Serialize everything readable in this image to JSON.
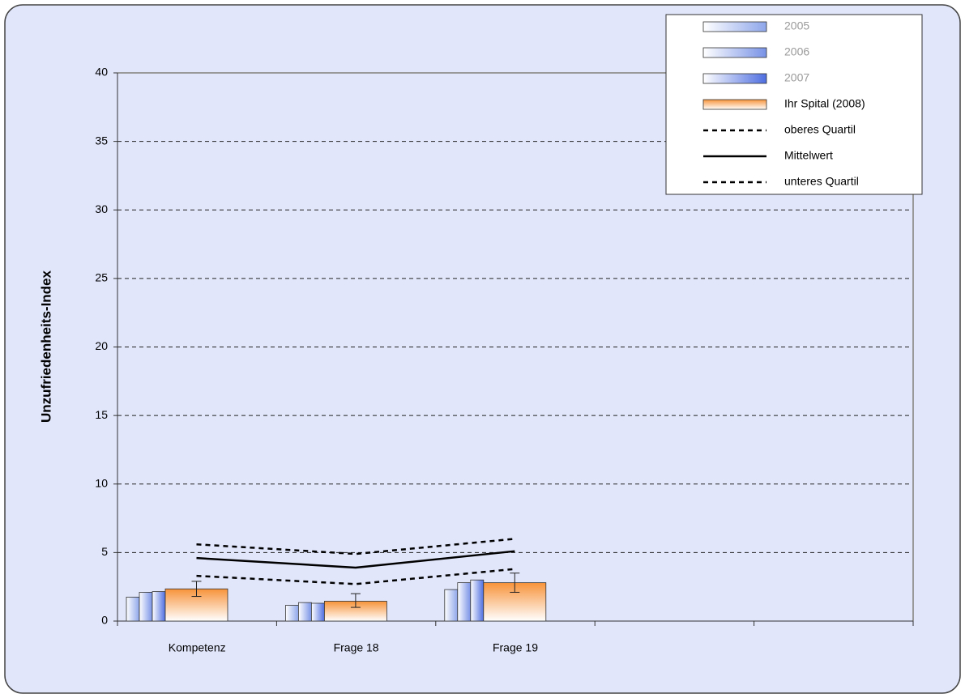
{
  "chart_data": {
    "type": "bar",
    "y_label": "Unzufriedenheits-Index",
    "categories": [
      "Kompetenz",
      "Frage 18",
      "Frage 19",
      null,
      null
    ],
    "ylim": [
      0,
      40
    ],
    "yticks": [
      0,
      5,
      10,
      15,
      20,
      25,
      30,
      35,
      40
    ],
    "grid": true,
    "legend": "top-right",
    "series": [
      {
        "name": "2005",
        "color": "#8ea6ea",
        "values": [
          1.75,
          1.15,
          2.3,
          null,
          null
        ]
      },
      {
        "name": "2006",
        "color": "#7892e6",
        "values": [
          2.1,
          1.35,
          2.8,
          null,
          null
        ]
      },
      {
        "name": "2007",
        "color": "#4e6ee0",
        "values": [
          2.15,
          1.3,
          3.0,
          null,
          null
        ]
      },
      {
        "name": "Ihr Spital  (2008)",
        "color": "#f7933a",
        "values": [
          2.35,
          1.45,
          2.8,
          null,
          null
        ],
        "error_low": [
          1.8,
          1.0,
          2.1,
          null,
          null
        ],
        "error_high": [
          2.9,
          2.0,
          3.5,
          null,
          null
        ]
      }
    ],
    "lines": [
      {
        "name": "oberes Quartil",
        "color": "#000000",
        "dashed": true,
        "values": [
          5.6,
          4.9,
          6.0,
          null,
          null
        ]
      },
      {
        "name": "Mittelwert",
        "color": "#000000",
        "dashed": false,
        "values": [
          4.6,
          3.9,
          5.1,
          null,
          null
        ]
      },
      {
        "name": "unteres Quartil",
        "color": "#000000",
        "dashed": true,
        "values": [
          3.3,
          2.7,
          3.8,
          null,
          null
        ]
      }
    ]
  }
}
